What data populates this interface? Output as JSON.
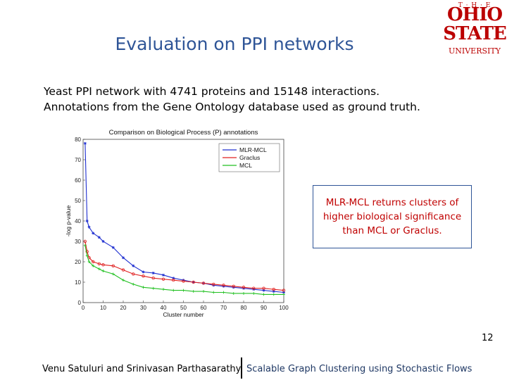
{
  "slide": {
    "title": "Evaluation on PPI networks",
    "body_lines": [
      "Yeast PPI network with 4741 proteins and 15148 interactions.",
      "Annotations from the Gene Ontology database used as ground truth."
    ],
    "callout": "MLR-MCL returns clusters of higher biological significance than MCL or Graclus.",
    "page_number": "12"
  },
  "logo": {
    "the": "T · H · E",
    "ohio": "OHIO",
    "state": "STATE",
    "university": "UNIVERSITY",
    "color": "#bb0000"
  },
  "footer": {
    "authors": "Venu Satuluri and Srinivasan Parthasarathy",
    "talk_title": "Scalable Graph Clustering using Stochastic Flows"
  },
  "colors": {
    "title": "#2f5597",
    "callout_text": "#c00000",
    "mlr_mcl": "#1f2fd0",
    "graclus": "#e02020",
    "mcl": "#20c020"
  },
  "chart_data": {
    "type": "line",
    "title": "Comparison on Biological Process (P) annotations",
    "xlabel": "Cluster number",
    "ylabel": "-log p-value",
    "xlim": [
      0,
      100
    ],
    "ylim": [
      0,
      80
    ],
    "xticks": [
      "0",
      "10",
      "20",
      "30",
      "40",
      "50",
      "60",
      "70",
      "80",
      "90",
      "100"
    ],
    "yticks": [
      "0",
      "10",
      "20",
      "30",
      "40",
      "50",
      "60",
      "70",
      "80"
    ],
    "legend_position": "top-right",
    "x": [
      1,
      2,
      3,
      5,
      8,
      10,
      15,
      20,
      25,
      30,
      35,
      40,
      45,
      50,
      55,
      60,
      65,
      70,
      75,
      80,
      85,
      90,
      95,
      100
    ],
    "series": [
      {
        "name": "MLR-MCL",
        "color": "#1f2fd0",
        "values": [
          78,
          40,
          37,
          34,
          32,
          30,
          27,
          22,
          18,
          15,
          14.5,
          13.5,
          12,
          11,
          10,
          9.5,
          8.5,
          8,
          7.5,
          7,
          6.5,
          6,
          5.5,
          5
        ]
      },
      {
        "name": "Graclus",
        "color": "#e02020",
        "values": [
          30,
          25,
          22,
          20,
          19,
          18.5,
          18,
          16,
          14,
          13,
          12,
          11.5,
          11,
          10.5,
          10,
          9.5,
          9,
          8.5,
          8,
          7.5,
          7,
          7,
          6.5,
          6
        ]
      },
      {
        "name": "MCL",
        "color": "#20c020",
        "values": [
          28,
          23,
          20,
          18,
          16.5,
          15.5,
          14,
          11,
          9,
          7.5,
          7,
          6.5,
          6,
          6,
          5.5,
          5.5,
          5,
          5,
          4.5,
          4.5,
          4.5,
          4,
          4,
          4
        ]
      }
    ]
  }
}
